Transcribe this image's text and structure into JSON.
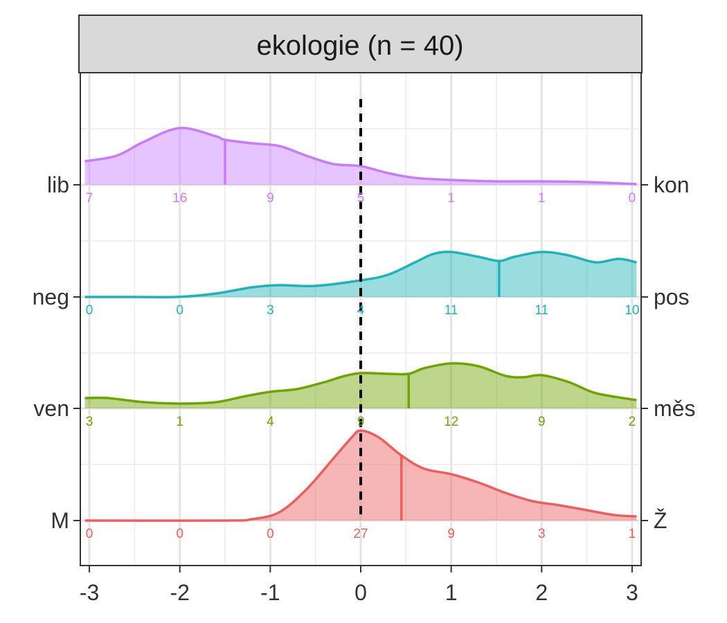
{
  "chart_data": {
    "type": "ridgeline-density",
    "panel_title": "ekologie (n = 40)",
    "xlim": [
      -3.1,
      3.1
    ],
    "x_ticks": [
      -3,
      -2,
      -1,
      0,
      1,
      2,
      3
    ],
    "x_tick_labels": [
      "-3",
      "-2",
      "-1",
      "0",
      "1",
      "2",
      "3"
    ],
    "reference_line_x": 0,
    "count_positions": [
      -3,
      -2,
      -1,
      0,
      1,
      2,
      3
    ],
    "series": [
      {
        "left_label": "lib",
        "right_label": "kon",
        "color": "#C77CFF",
        "median": -1.5,
        "counts": [
          "7",
          "16",
          "9",
          "5",
          "1",
          "1",
          "0"
        ],
        "density": [
          [
            -3.05,
            0.34
          ],
          [
            -2.7,
            0.42
          ],
          [
            -2.4,
            0.62
          ],
          [
            -2.0,
            0.82
          ],
          [
            -1.6,
            0.7
          ],
          [
            -1.5,
            0.65
          ],
          [
            -1.2,
            0.6
          ],
          [
            -0.9,
            0.56
          ],
          [
            -0.6,
            0.42
          ],
          [
            -0.3,
            0.3
          ],
          [
            0.0,
            0.27
          ],
          [
            0.3,
            0.17
          ],
          [
            0.6,
            0.1
          ],
          [
            1.0,
            0.07
          ],
          [
            1.5,
            0.05
          ],
          [
            2.0,
            0.05
          ],
          [
            2.5,
            0.04
          ],
          [
            3.05,
            0.01
          ]
        ]
      },
      {
        "left_label": "neg",
        "right_label": "pos",
        "color": "#1EB3B8",
        "median": 1.53,
        "counts": [
          "0",
          "0",
          "3",
          "4",
          "11",
          "11",
          "10"
        ],
        "density": [
          [
            -3.05,
            0.0
          ],
          [
            -2.5,
            0.0
          ],
          [
            -2.0,
            0.002
          ],
          [
            -1.6,
            0.05
          ],
          [
            -1.2,
            0.14
          ],
          [
            -0.9,
            0.17
          ],
          [
            -0.5,
            0.16
          ],
          [
            0.0,
            0.24
          ],
          [
            0.3,
            0.32
          ],
          [
            0.6,
            0.5
          ],
          [
            0.8,
            0.62
          ],
          [
            1.0,
            0.65
          ],
          [
            1.3,
            0.58
          ],
          [
            1.53,
            0.52
          ],
          [
            1.7,
            0.58
          ],
          [
            2.0,
            0.65
          ],
          [
            2.3,
            0.6
          ],
          [
            2.6,
            0.5
          ],
          [
            2.85,
            0.55
          ],
          [
            3.05,
            0.5
          ]
        ]
      },
      {
        "left_label": "ven",
        "right_label": "měs",
        "color": "#6EA400",
        "median": 0.53,
        "counts": [
          "3",
          "1",
          "4",
          "9",
          "12",
          "9",
          "2"
        ],
        "density": [
          [
            -3.05,
            0.15
          ],
          [
            -2.8,
            0.15
          ],
          [
            -2.4,
            0.09
          ],
          [
            -2.0,
            0.07
          ],
          [
            -1.6,
            0.09
          ],
          [
            -1.3,
            0.17
          ],
          [
            -1.0,
            0.24
          ],
          [
            -0.7,
            0.28
          ],
          [
            -0.4,
            0.38
          ],
          [
            -0.2,
            0.46
          ],
          [
            0.0,
            0.51
          ],
          [
            0.3,
            0.5
          ],
          [
            0.53,
            0.5
          ],
          [
            0.7,
            0.58
          ],
          [
            1.0,
            0.65
          ],
          [
            1.3,
            0.61
          ],
          [
            1.6,
            0.47
          ],
          [
            1.8,
            0.45
          ],
          [
            2.0,
            0.48
          ],
          [
            2.3,
            0.38
          ],
          [
            2.6,
            0.22
          ],
          [
            3.05,
            0.12
          ]
        ]
      },
      {
        "left_label": "M",
        "right_label": "Ž",
        "color": "#EE5E5E",
        "median": 0.45,
        "counts": [
          "0",
          "0",
          "0",
          "27",
          "9",
          "3",
          "1"
        ],
        "density": [
          [
            -3.05,
            0.0
          ],
          [
            -1.5,
            0.0
          ],
          [
            -1.2,
            0.02
          ],
          [
            -0.9,
            0.12
          ],
          [
            -0.6,
            0.45
          ],
          [
            -0.3,
            0.9
          ],
          [
            -0.1,
            1.2
          ],
          [
            0.0,
            1.3
          ],
          [
            0.2,
            1.2
          ],
          [
            0.45,
            0.94
          ],
          [
            0.7,
            0.75
          ],
          [
            1.0,
            0.67
          ],
          [
            1.3,
            0.55
          ],
          [
            1.6,
            0.4
          ],
          [
            1.9,
            0.28
          ],
          [
            2.2,
            0.22
          ],
          [
            2.5,
            0.15
          ],
          [
            2.8,
            0.08
          ],
          [
            3.05,
            0.06
          ]
        ]
      }
    ]
  }
}
